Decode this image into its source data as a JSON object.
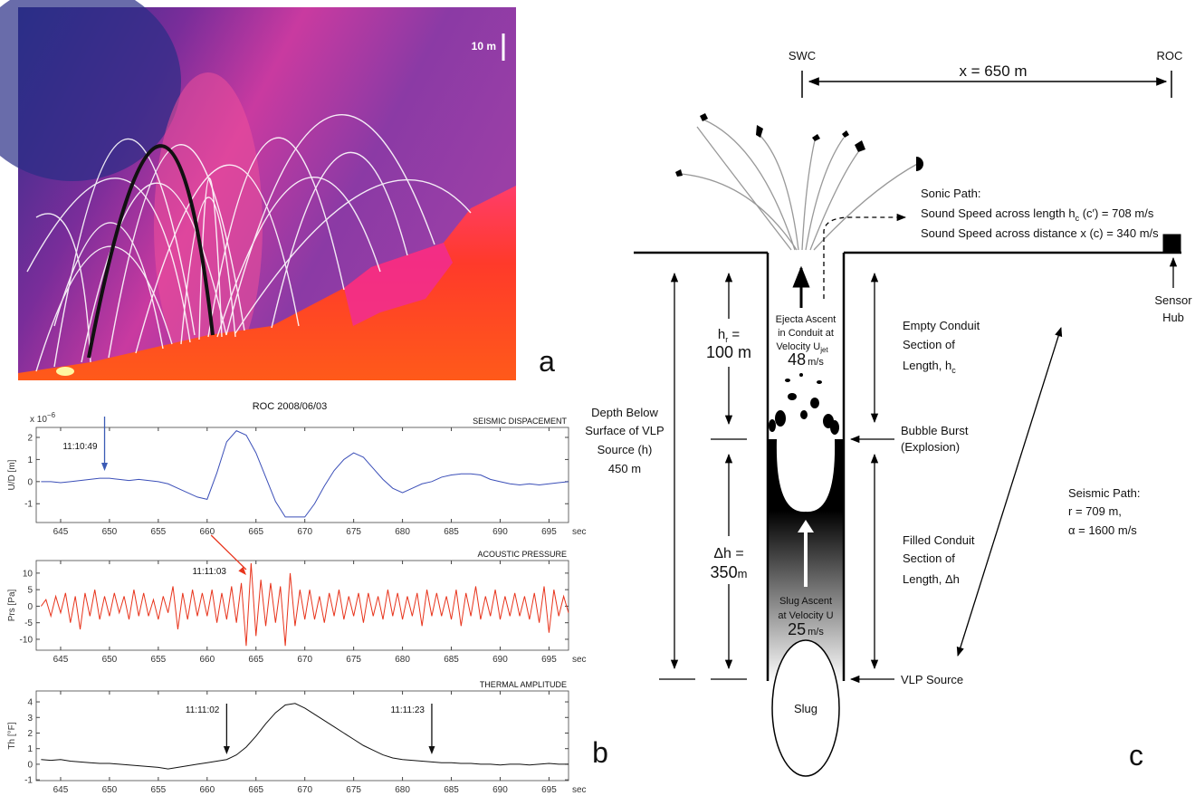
{
  "panel_a": {
    "scale_bar": "10 m",
    "label": "a"
  },
  "panel_b": {
    "title": "ROC 2008/06/03",
    "label": "b"
  },
  "chart_data": [
    {
      "type": "line",
      "title": "SEISMIC DISPACEMENT",
      "ylabel": "U/D [m]",
      "y_scale_label": "x 10",
      "y_scale_exponent": "−6",
      "xlabel": "sec",
      "color": "#3b4fb8",
      "xlim": [
        642.5,
        697
      ],
      "ylim": [
        -1.85,
        2.45
      ],
      "xticks": [
        645,
        650,
        655,
        660,
        665,
        670,
        675,
        680,
        685,
        690,
        695
      ],
      "yticks": [
        -1,
        0,
        1,
        2
      ],
      "x": [
        643,
        644,
        645,
        646,
        647,
        648,
        649,
        650,
        651,
        652,
        653,
        654,
        655,
        656,
        657,
        658,
        659,
        660,
        661,
        662,
        663,
        664,
        665,
        666,
        667,
        668,
        669,
        670,
        671,
        672,
        673,
        674,
        675,
        676,
        677,
        678,
        679,
        680,
        681,
        682,
        683,
        684,
        685,
        686,
        687,
        688,
        689,
        690,
        691,
        692,
        693,
        694,
        695,
        696,
        697
      ],
      "values": [
        0,
        0,
        -0.05,
        0,
        0.05,
        0.1,
        0.15,
        0.15,
        0.1,
        0.05,
        0.1,
        0.05,
        0,
        -0.1,
        -0.3,
        -0.5,
        -0.7,
        -0.8,
        0.4,
        1.8,
        2.3,
        2.1,
        1.3,
        0.2,
        -0.9,
        -1.6,
        -1.6,
        -1.6,
        -1.0,
        -0.2,
        0.5,
        1.0,
        1.3,
        1.1,
        0.6,
        0.1,
        -0.3,
        -0.5,
        -0.3,
        -0.1,
        0,
        0.2,
        0.3,
        0.35,
        0.35,
        0.3,
        0.1,
        0,
        -0.1,
        -0.15,
        -0.1,
        -0.15,
        -0.1,
        -0.05,
        0
      ],
      "annotations": [
        {
          "text": "11:10:49",
          "x": 649.5,
          "color": "#3b5bb5"
        }
      ]
    },
    {
      "type": "line",
      "title": "ACOUSTIC PRESSURE",
      "ylabel": "Prs [Pa]",
      "xlabel": "sec",
      "color": "#e8341c",
      "xlim": [
        642.5,
        697
      ],
      "ylim": [
        -13.3,
        13.8
      ],
      "xticks": [
        645,
        650,
        655,
        660,
        665,
        670,
        675,
        680,
        685,
        690,
        695
      ],
      "yticks": [
        -10,
        -5,
        0,
        5,
        10
      ],
      "x": [
        643,
        643.5,
        644,
        644.5,
        645,
        645.5,
        646,
        646.5,
        647,
        647.5,
        648,
        648.5,
        649,
        649.5,
        650,
        650.5,
        651,
        651.5,
        652,
        652.5,
        653,
        653.5,
        654,
        654.5,
        655,
        655.5,
        656,
        656.5,
        657,
        657.5,
        658,
        658.5,
        659,
        659.5,
        660,
        660.5,
        661,
        661.5,
        662,
        662.5,
        663,
        663.5,
        664,
        664.5,
        665,
        665.5,
        666,
        666.5,
        667,
        667.5,
        668,
        668.5,
        669,
        669.5,
        670,
        670.5,
        671,
        671.5,
        672,
        672.5,
        673,
        673.5,
        674,
        674.5,
        675,
        675.5,
        676,
        676.5,
        677,
        677.5,
        678,
        678.5,
        679,
        679.5,
        680,
        680.5,
        681,
        681.5,
        682,
        682.5,
        683,
        683.5,
        684,
        684.5,
        685,
        685.5,
        686,
        686.5,
        687,
        687.5,
        688,
        688.5,
        689,
        689.5,
        690,
        690.5,
        691,
        691.5,
        692,
        692.5,
        693,
        693.5,
        694,
        694.5,
        695,
        695.5,
        696,
        696.5,
        697
      ],
      "values": [
        0,
        2,
        -3,
        3,
        -2,
        4,
        -5,
        3,
        -7,
        4,
        -3,
        5,
        -4,
        3,
        -3,
        4,
        -2,
        3,
        -4,
        5,
        -3,
        4,
        -3,
        2,
        -4,
        3,
        -2,
        6,
        -7,
        4,
        -4,
        5,
        -3,
        4,
        -3,
        5,
        -5,
        4,
        -4,
        6,
        -5,
        7,
        -12,
        13,
        -9,
        8,
        -6,
        7,
        -5,
        6,
        -12,
        10,
        -6,
        5,
        -4,
        5,
        -4,
        3,
        -5,
        4,
        -3,
        5,
        -4,
        3,
        -3,
        4,
        -5,
        4,
        -3,
        3,
        -4,
        5,
        -3,
        4,
        -4,
        3,
        -3,
        4,
        -6,
        5,
        -3,
        4,
        -3,
        3,
        -4,
        5,
        -6,
        4,
        -3,
        6,
        -4,
        3,
        -3,
        5,
        -4,
        3,
        -3,
        4,
        -3,
        3,
        -4,
        4,
        -5,
        6,
        -8,
        5,
        -3,
        3,
        -2
      ],
      "annotations": [
        {
          "text": "11:11:03",
          "x": 664,
          "color": "#e8341c"
        }
      ]
    },
    {
      "type": "line",
      "title": "THERMAL AMPLITUDE",
      "ylabel": "Th [°F]",
      "xlabel": "sec",
      "color": "#111111",
      "xlim": [
        642.5,
        697
      ],
      "ylim": [
        -1.05,
        4.7
      ],
      "xticks": [
        645,
        650,
        655,
        660,
        665,
        670,
        675,
        680,
        685,
        690,
        695
      ],
      "yticks": [
        -1,
        0,
        1,
        2,
        3,
        4
      ],
      "x": [
        643,
        644,
        645,
        646,
        647,
        648,
        649,
        650,
        651,
        652,
        653,
        654,
        655,
        656,
        657,
        658,
        659,
        660,
        661,
        662,
        663,
        664,
        665,
        666,
        667,
        668,
        669,
        670,
        671,
        672,
        673,
        674,
        675,
        676,
        677,
        678,
        679,
        680,
        681,
        682,
        683,
        684,
        685,
        686,
        687,
        688,
        689,
        690,
        691,
        692,
        693,
        694,
        695,
        696,
        697
      ],
      "values": [
        0.3,
        0.25,
        0.3,
        0.2,
        0.15,
        0.1,
        0.05,
        0.05,
        0,
        -0.05,
        -0.1,
        -0.15,
        -0.2,
        -0.3,
        -0.2,
        -0.1,
        0,
        0.1,
        0.2,
        0.3,
        0.6,
        1.1,
        1.8,
        2.6,
        3.3,
        3.8,
        3.9,
        3.6,
        3.2,
        2.8,
        2.4,
        2,
        1.6,
        1.2,
        0.9,
        0.6,
        0.4,
        0.3,
        0.25,
        0.2,
        0.15,
        0.1,
        0.1,
        0.05,
        0.05,
        0,
        0,
        -0.05,
        0,
        0,
        -0.05,
        0,
        0.05,
        0,
        0
      ],
      "annotations": [
        {
          "text": "11:11:02",
          "x": 662,
          "color": "#111111"
        },
        {
          "text": "11:11:23",
          "x": 683,
          "color": "#111111"
        }
      ]
    }
  ],
  "panel_c": {
    "swc": "SWC",
    "roc": "ROC",
    "distance": "x = 650 m",
    "sonic_path": {
      "title": "Sonic Path:",
      "line1": "Sound Speed across length h",
      "line1_sub": "c",
      "line1_tail": " (c′)  = 708 m/s",
      "line2": "Sound Speed across distance x (c) = 340 m/s"
    },
    "sensor_hub": [
      "Sensor",
      "Hub"
    ],
    "ejecta": {
      "lines": [
        "Ejecta Ascent",
        "in Conduit at",
        "Velocity U"
      ],
      "sub": "jet",
      "speed": "48",
      "unit": "m/s"
    },
    "hr": {
      "label": "h",
      "sub": "r",
      "eq": " =",
      "value": "100 m"
    },
    "empty_conduit": {
      "lines": [
        "Empty Conduit",
        "Section of",
        "Length, h"
      ],
      "sub": "c"
    },
    "depth": [
      "Depth Below",
      "Surface of VLP",
      "Source (h)",
      "450 m"
    ],
    "bubble_burst": [
      "Bubble Burst",
      "(Explosion)"
    ],
    "dh": {
      "label": "Δh =",
      "value": "350",
      "unit": "m"
    },
    "seismic_path": [
      "Seismic Path:",
      "r = 709 m,",
      "α = 1600 m/s"
    ],
    "filled_conduit": [
      "Filled Conduit",
      "Section of",
      "Length, Δh"
    ],
    "slug_ascent": {
      "lines": [
        "Slug Ascent",
        "at Velocity U"
      ],
      "speed": "25",
      "unit": "m/s"
    },
    "vlp_source": "VLP Source",
    "slug": "Slug",
    "label": "c"
  }
}
